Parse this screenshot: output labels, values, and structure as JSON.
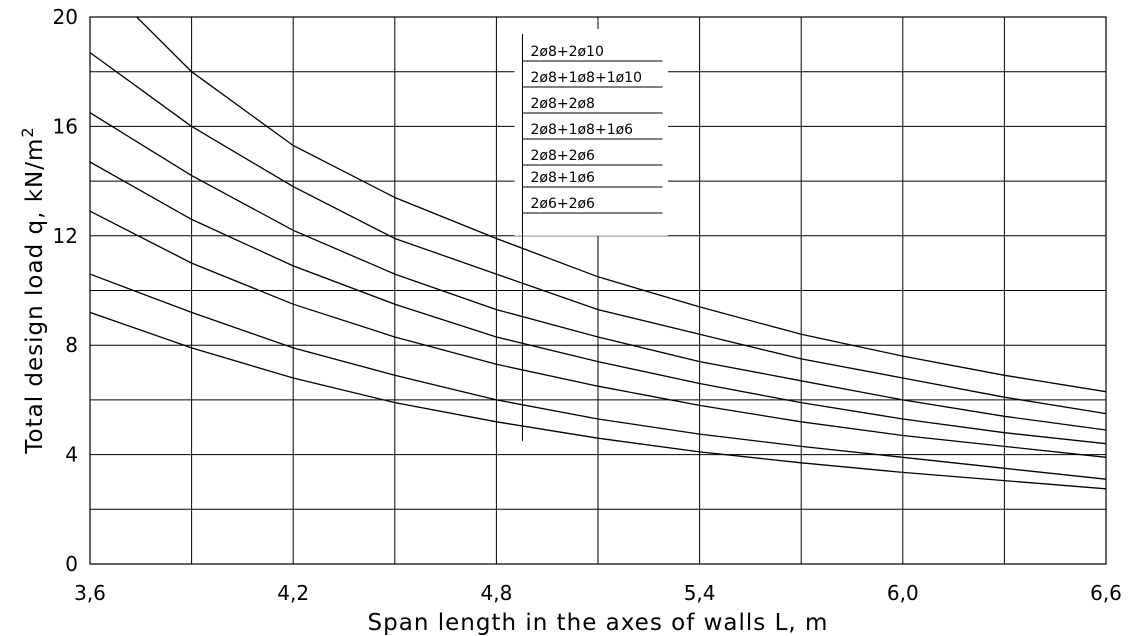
{
  "chart_data": {
    "type": "line",
    "title": "",
    "xlabel": "Span length in the axes of walls L, m",
    "ylabel_main": "Total design load q, kN/m",
    "ylabel_sup": "2",
    "xlim": [
      3.6,
      6.6
    ],
    "ylim": [
      0,
      20
    ],
    "x_ticks": [
      "3,6",
      "4,2",
      "4,8",
      "5,4",
      "6,0",
      "6,6"
    ],
    "y_ticks": [
      "0",
      "4",
      "8",
      "12",
      "16",
      "20"
    ],
    "grid": true,
    "legend_position": "top-center",
    "legend": [
      "2ø8+2ø10",
      "2ø8+1ø8+1ø10",
      "2ø8+2ø8",
      "2ø8+1ø8+1ø6",
      "2ø8+2ø6",
      "2ø8+1ø6",
      "2ø6+2ø6"
    ],
    "series": [
      {
        "x": [
          3.6,
          3.9,
          4.2,
          4.5,
          4.8,
          5.1,
          5.4,
          5.7,
          6.0,
          6.3,
          6.6
        ],
        "y": [
          21.7,
          18.0,
          15.3,
          13.4,
          11.9,
          10.5,
          9.4,
          8.4,
          7.6,
          6.9,
          6.3
        ]
      },
      {
        "x": [
          3.6,
          3.9,
          4.2,
          4.5,
          4.8,
          5.1,
          5.4,
          5.7,
          6.0,
          6.3,
          6.6
        ],
        "y": [
          18.7,
          16.0,
          13.8,
          11.9,
          10.6,
          9.3,
          8.4,
          7.5,
          6.8,
          6.1,
          5.5
        ]
      },
      {
        "x": [
          3.6,
          3.9,
          4.2,
          4.5,
          4.8,
          5.1,
          5.4,
          5.7,
          6.0,
          6.3,
          6.6
        ],
        "y": [
          16.5,
          14.2,
          12.2,
          10.6,
          9.3,
          8.3,
          7.4,
          6.7,
          6.0,
          5.4,
          4.9
        ]
      },
      {
        "x": [
          3.6,
          3.9,
          4.2,
          4.5,
          4.8,
          5.1,
          5.4,
          5.7,
          6.0,
          6.3,
          6.6
        ],
        "y": [
          14.7,
          12.6,
          10.9,
          9.5,
          8.3,
          7.4,
          6.6,
          5.9,
          5.3,
          4.8,
          4.4
        ]
      },
      {
        "x": [
          3.6,
          3.9,
          4.2,
          4.5,
          4.8,
          5.1,
          5.4,
          5.7,
          6.0,
          6.3,
          6.6
        ],
        "y": [
          12.9,
          11.0,
          9.5,
          8.3,
          7.3,
          6.5,
          5.8,
          5.2,
          4.7,
          4.3,
          3.9
        ]
      },
      {
        "x": [
          3.6,
          3.9,
          4.2,
          4.5,
          4.8,
          5.1,
          5.4,
          5.7,
          6.0,
          6.3,
          6.6
        ],
        "y": [
          10.6,
          9.2,
          7.9,
          6.9,
          6.0,
          5.3,
          4.75,
          4.3,
          3.9,
          3.5,
          3.1
        ]
      },
      {
        "x": [
          3.6,
          3.9,
          4.2,
          4.5,
          4.8,
          5.1,
          5.4,
          5.7,
          6.0,
          6.3,
          6.6
        ],
        "y": [
          9.2,
          7.9,
          6.8,
          5.9,
          5.2,
          4.6,
          4.1,
          3.7,
          3.35,
          3.05,
          2.75
        ]
      }
    ]
  }
}
